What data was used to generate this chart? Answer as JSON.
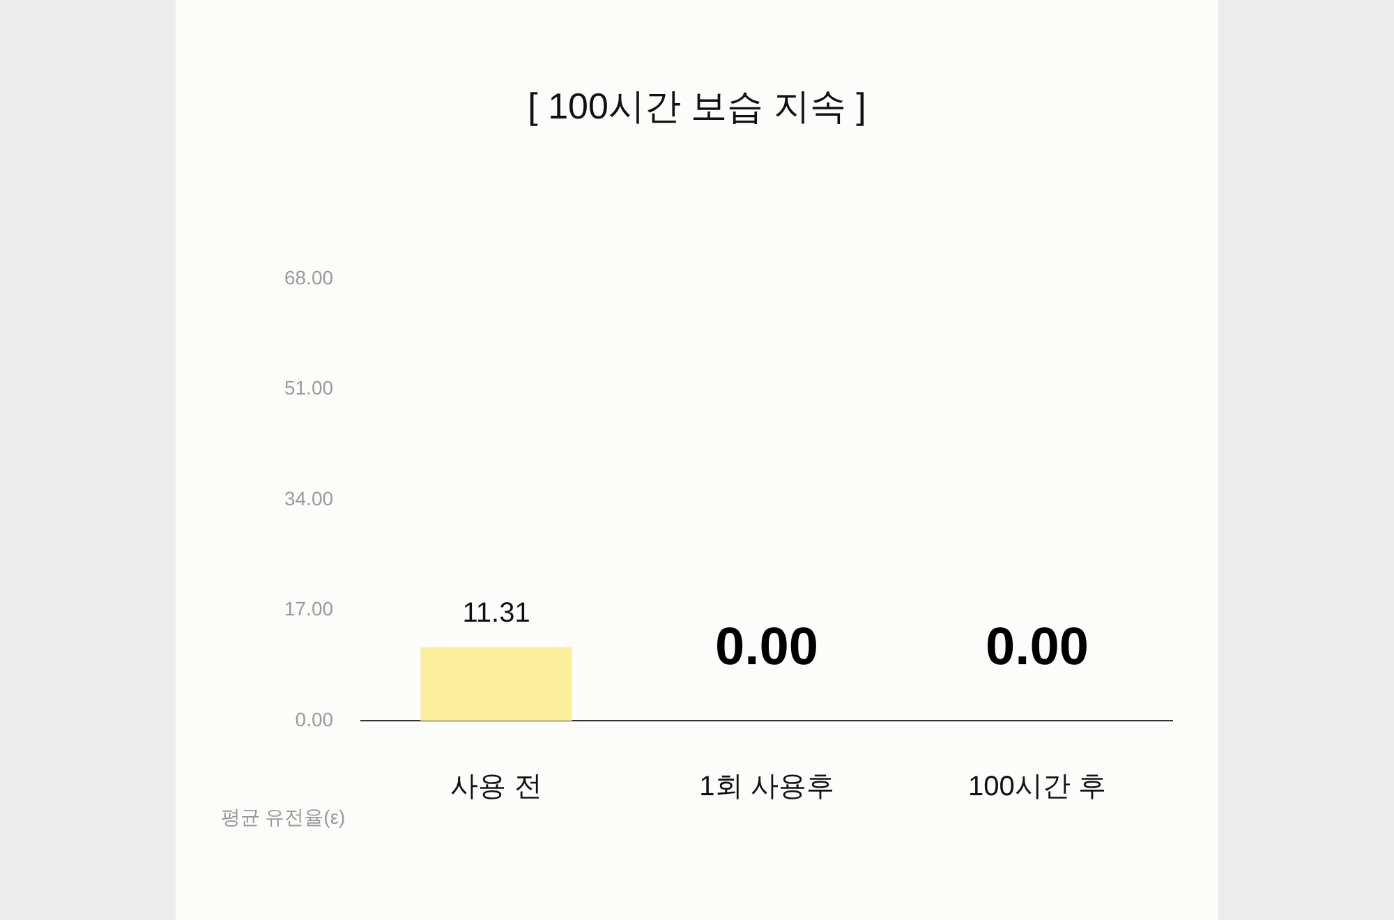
{
  "chart_data": {
    "type": "bar",
    "title": "[ 100시간 보습 지속 ]",
    "ylabel": "평균 유전율(ε)",
    "categories": [
      "사용 전",
      "1회 사용후",
      "100시간 후"
    ],
    "values": [
      11.31,
      0.0,
      0.0
    ],
    "value_labels": [
      "11.31",
      "0.00",
      "0.00"
    ],
    "color": "#fcef9c",
    "ylim": [
      0,
      68
    ],
    "yticks": [
      {
        "value": 0,
        "label": "0.00"
      },
      {
        "value": 17,
        "label": "17.00"
      },
      {
        "value": 34,
        "label": "34.00"
      },
      {
        "value": 51,
        "label": "51.00"
      },
      {
        "value": 68,
        "label": "68.00"
      }
    ],
    "grid": false,
    "legend": false
  }
}
